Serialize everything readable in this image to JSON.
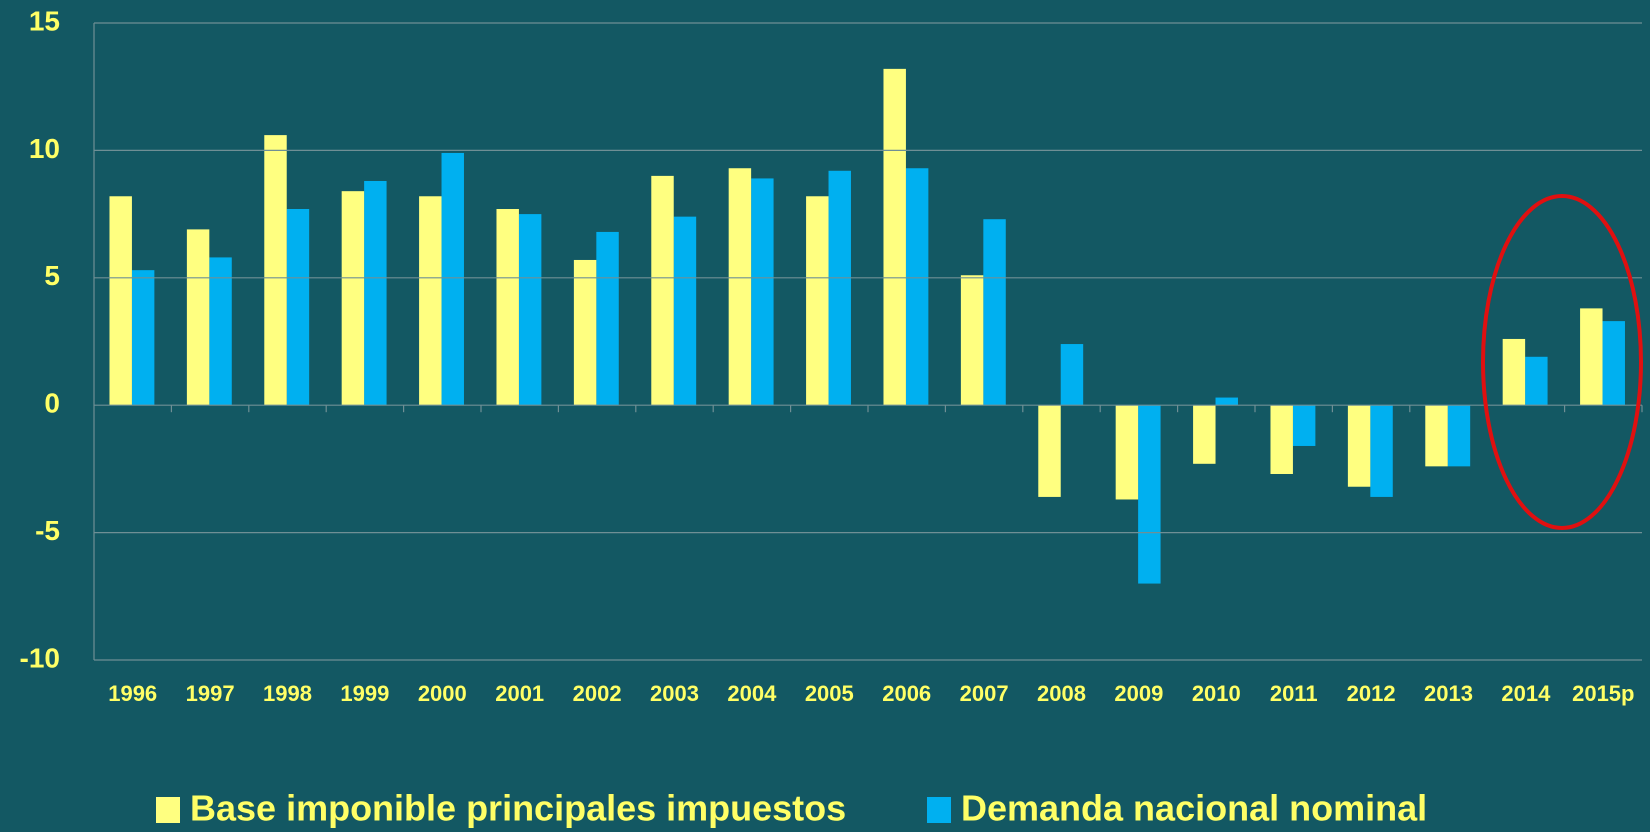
{
  "chart_data": {
    "type": "bar",
    "categories": [
      "1996",
      "1997",
      "1998",
      "1999",
      "2000",
      "2001",
      "2002",
      "2003",
      "2004",
      "2005",
      "2006",
      "2007",
      "2008",
      "2009",
      "2010",
      "2011",
      "2012",
      "2013",
      "2014",
      "2015p"
    ],
    "series": [
      {
        "name": "Base imponible principales impuestos",
        "color": "#ffff80",
        "values": [
          8.2,
          6.9,
          10.6,
          8.4,
          8.2,
          7.7,
          5.7,
          9.0,
          9.3,
          8.2,
          13.2,
          5.1,
          -3.6,
          -3.7,
          -2.3,
          -2.7,
          -3.2,
          -2.4,
          2.6,
          3.8
        ]
      },
      {
        "name": "Demanda nacional nominal",
        "color": "#00b0f0",
        "values": [
          5.3,
          5.8,
          7.7,
          8.8,
          9.9,
          7.5,
          6.8,
          7.4,
          8.9,
          9.2,
          9.3,
          7.3,
          2.4,
          -7.0,
          0.3,
          -1.6,
          -3.6,
          -2.4,
          1.9,
          3.3
        ]
      }
    ],
    "ylim": [
      -10,
      15
    ],
    "yticks": [
      -10,
      -5,
      0,
      5,
      10,
      15
    ],
    "grid": true
  }
}
